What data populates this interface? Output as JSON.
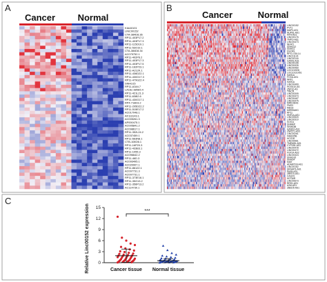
{
  "colors": {
    "low": "#2b3fb0",
    "mid": "#f1eff6",
    "high": "#e0202a",
    "cancer_points": "#d6232b",
    "normal_points": "#1f3fa8",
    "frame": "#8a8a8a"
  },
  "chart_data": [
    {
      "panel": "A",
      "type": "heatmap",
      "group_labels": [
        "Cancer",
        "Normal"
      ],
      "columns_per_group": [
        10,
        10
      ],
      "rows": [
        "KIAA0101",
        "LINC00152",
        "CTA-384D8.36",
        "RP11-403P17.2",
        "RP11-403P17.3",
        "RP11-115D19.1",
        "RP11-53O19.1",
        "CTA-384D8.34",
        "AC079752.1",
        "RP11-402P6.2",
        "RP11-403P17.3",
        "RP11-403P17.5",
        "RP11-162P23.1",
        "RP11-A212K.1",
        "RP11-436D22.1",
        "RP11-430G17.3",
        "RP11-479G22.4",
        "SNHG15",
        "RP11-A344.7",
        "LA16c-385E5.4",
        "RP11-421L21.3",
        "RP11-638I2.6",
        "RP11-430G17.1",
        "RP4-718D3.2",
        "RP11-295D22.2",
        "RP11-515E17.2",
        "AC017048.1",
        "AF113143.1",
        "AC005261.3",
        "AP000475.1",
        "AC005841.2",
        "AC098617.1",
        "RP11-352L24.2",
        "AC037459.1",
        "RP11-663N8.1",
        "CTB-108O6.1",
        "RP11-16P20.3",
        "RP11-433B3.1",
        "RP11-1055.3",
        "AC096642.2",
        "RP11-46D.3",
        "AC093495.1",
        "AC020907.1",
        "RP11-86122.1",
        "AC007731.3",
        "AC007731.1",
        "RP11-373E16.1",
        "RP11-35G13.2",
        "RP11-356P13.2",
        "AC114730.1"
      ],
      "pattern": "top rows high in Cancer and low in Normal; bottom rows low in Cancer and high in Normal",
      "color_scale": "blue (low) - white - red (high)"
    },
    {
      "panel": "B",
      "type": "heatmap",
      "group_labels": [
        "Cancer",
        "Normal"
      ],
      "columns_per_group": [
        150,
        25
      ],
      "rows": [
        "LINC00152",
        "PVT1",
        "MAP3-AS1",
        "NUP61-AS1",
        "KIF9-AS1",
        "LINC00176",
        "TMPO-AS1",
        "LINC00473",
        "NEAT1",
        "SNHG12",
        "SNHG1",
        "DSCR9",
        "RP11-ODL14",
        "LINC01124",
        "LINC00140",
        "GATA3-AS1",
        "LINC00106",
        "LINC00426",
        "LINC00460",
        "LOC101928",
        "LOC10131051",
        "HAR1A",
        "FOXA-AS1",
        "NRF1",
        "HAR1A",
        "LINC00469",
        "HOXA10-AS",
        "ZNF32-AS",
        "TINCR",
        "LINC00305",
        "LINC00473",
        "LINC00467",
        "LINC00475",
        "MIR143HG",
        "FMO2",
        "MEG3",
        "MIR99AHG",
        "RP11",
        "HNF1A-AS1",
        "LINC00520",
        "LINC00310",
        "SOX11",
        "DNMBP",
        "SEMA3B",
        "HAND2-AS1",
        "ZNF571-AS1",
        "LINC00261",
        "FAM225B",
        "HCG18",
        "LINC00961",
        "TMEM51-AS1",
        "CYP1B1-AS1",
        "LINC00478",
        "LINC00472",
        "FGF14-AS2",
        "LINC00324",
        "SNHG16",
        "SNHG4",
        "MIAT",
        "ADAMTS9-AS1",
        "LINC00162",
        "SRGAP3-AS1",
        "PAX8-AS1",
        "ZBED3-AS1",
        "CASC9",
        "HOTAIR",
        "LINC00673",
        "RRS1-AS1",
        "A2M-AS1",
        "ZBED5-AS1"
      ],
      "pattern": "mostly mixed; a band of upper rows high in Cancer; lower rows higher in Normal",
      "color_scale": "blue (low) - white - red (high)"
    },
    {
      "panel": "C",
      "type": "scatter",
      "categories": [
        "Cancer tissue",
        "Normal tissue"
      ],
      "ylabel": "Relative Linc00152 expression",
      "ylim": [
        0,
        15
      ],
      "yticks": [
        0,
        3,
        6,
        9,
        12,
        15
      ],
      "significance": "***",
      "series": [
        {
          "name": "Cancer tissue",
          "mean": 1.9,
          "sd": 1.8,
          "values": [
            0.06,
            0.1,
            0.15,
            0.2,
            0.25,
            0.3,
            0.35,
            0.4,
            0.45,
            0.5,
            0.55,
            0.6,
            0.7,
            0.75,
            0.8,
            0.9,
            1.0,
            1.1,
            1.2,
            1.3,
            1.4,
            1.5,
            1.6,
            1.7,
            1.8,
            1.9,
            2.0,
            2.1,
            2.2,
            2.4,
            2.5,
            2.7,
            2.9,
            3.1,
            3.3,
            3.6,
            3.9,
            4.3,
            4.8,
            5.2,
            6.0,
            6.8,
            12.5
          ]
        },
        {
          "name": "Normal tissue",
          "mean": 0.55,
          "sd": 0.55,
          "values": [
            0.02,
            0.05,
            0.08,
            0.1,
            0.12,
            0.15,
            0.18,
            0.2,
            0.22,
            0.25,
            0.28,
            0.3,
            0.32,
            0.35,
            0.38,
            0.4,
            0.42,
            0.45,
            0.48,
            0.5,
            0.55,
            0.6,
            0.65,
            0.7,
            0.75,
            0.8,
            0.9,
            1.0,
            1.1,
            1.2,
            1.35,
            1.5,
            1.7,
            1.9,
            2.2,
            2.6,
            3.4,
            4.6
          ]
        }
      ]
    }
  ],
  "panel_labels": [
    "A",
    "B",
    "C"
  ]
}
